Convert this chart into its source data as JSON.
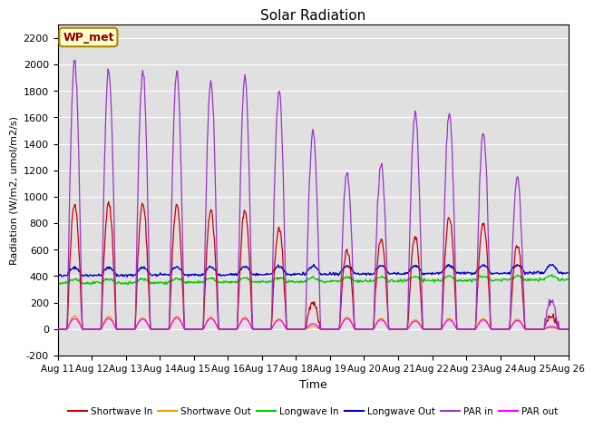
{
  "title": "Solar Radiation",
  "xlabel": "Time",
  "ylabel": "Radiation (W/m2, umol/m2/s)",
  "ylim": [
    -200,
    2300
  ],
  "yticks": [
    -200,
    0,
    200,
    400,
    600,
    800,
    1000,
    1200,
    1400,
    1600,
    1800,
    2000,
    2200
  ],
  "station_label": "WP_met",
  "x_tick_labels": [
    "Aug 11",
    "Aug 12",
    "Aug 13",
    "Aug 14",
    "Aug 15",
    "Aug 16",
    "Aug 17",
    "Aug 18",
    "Aug 19",
    "Aug 20",
    "Aug 21",
    "Aug 22",
    "Aug 23",
    "Aug 24",
    "Aug 25",
    "Aug 26"
  ],
  "background_color": "#e0e0e0",
  "colors": {
    "shortwave_in": "#cc0000",
    "shortwave_out": "#ff9900",
    "longwave_in": "#00cc00",
    "longwave_out": "#0000cc",
    "par_in": "#9933cc",
    "par_out": "#ff00ff"
  },
  "legend": [
    {
      "label": "Shortwave In",
      "color": "#cc0000"
    },
    {
      "label": "Shortwave Out",
      "color": "#ff9900"
    },
    {
      "label": "Longwave In",
      "color": "#00cc00"
    },
    {
      "label": "Longwave Out",
      "color": "#0000cc"
    },
    {
      "label": "PAR in",
      "color": "#9933cc"
    },
    {
      "label": "PAR out",
      "color": "#ff00ff"
    }
  ]
}
